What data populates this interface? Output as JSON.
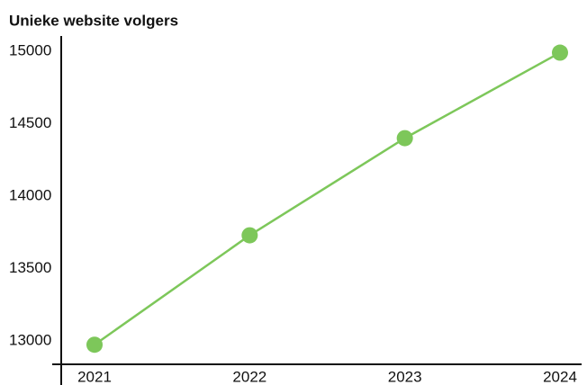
{
  "chart_data": {
    "type": "line",
    "title": "Unieke website volgers",
    "categories": [
      "2021",
      "2022",
      "2023",
      "2024"
    ],
    "series": [
      {
        "name": "Unieke website volgers",
        "color": "#7dc75a",
        "values": [
          12975,
          13730,
          14400,
          14990
        ]
      }
    ],
    "ylim": [
      12840,
      15105
    ],
    "yticks": [
      13000,
      13500,
      14000,
      14500,
      15000
    ],
    "grid": false
  }
}
